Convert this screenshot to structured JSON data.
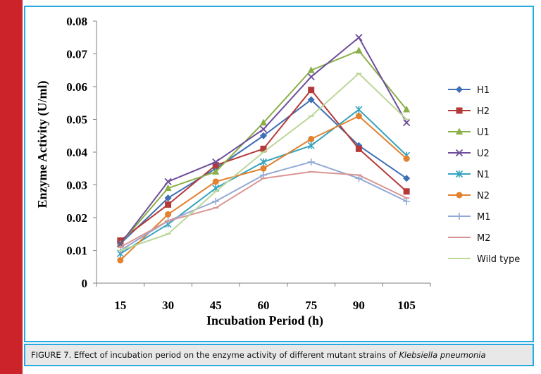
{
  "caption": {
    "prefix": "FIGURE 7. Effect of incubation period on the enzyme activity of different mutant strains of ",
    "organism": "Klebsiella pneumonia"
  },
  "colors": {
    "left_bar": "#cc2229",
    "frame": "#29a9e1"
  },
  "chart_data": {
    "type": "line",
    "xlabel": "Incubation Period (h)",
    "ylabel": "Enzyme Activity (U/ml)",
    "x": [
      15,
      30,
      45,
      60,
      75,
      90,
      105
    ],
    "ylim": [
      0,
      0.08
    ],
    "yticks": [
      "0",
      "0.01",
      "0.02",
      "0.03",
      "0.04",
      "0.05",
      "0.06",
      "0.07",
      "0.08"
    ],
    "yticks_values": [
      0,
      0.01,
      0.02,
      0.03,
      0.04,
      0.05,
      0.06,
      0.07,
      0.08
    ],
    "grid": false,
    "legend_position": "right",
    "series": [
      {
        "name": "H1",
        "color": "#3f6fb5",
        "marker": "diamond",
        "values": [
          0.012,
          0.026,
          0.035,
          0.045,
          0.056,
          0.042,
          0.032
        ]
      },
      {
        "name": "H2",
        "color": "#b53a37",
        "marker": "square",
        "values": [
          0.013,
          0.024,
          0.036,
          0.041,
          0.059,
          0.041,
          0.028
        ]
      },
      {
        "name": "U1",
        "color": "#8aaf46",
        "marker": "triangle",
        "values": [
          0.012,
          0.029,
          0.034,
          0.049,
          0.065,
          0.071,
          0.053
        ]
      },
      {
        "name": "U2",
        "color": "#6e4e9a",
        "marker": "x",
        "values": [
          0.012,
          0.031,
          0.037,
          0.047,
          0.063,
          0.075,
          0.049
        ]
      },
      {
        "name": "N1",
        "color": "#36a3be",
        "marker": "star",
        "values": [
          0.009,
          0.018,
          0.029,
          0.037,
          0.042,
          0.053,
          0.039
        ]
      },
      {
        "name": "N2",
        "color": "#e2812e",
        "marker": "circle",
        "values": [
          0.007,
          0.021,
          0.031,
          0.035,
          0.044,
          0.051,
          0.038
        ]
      },
      {
        "name": "M1",
        "color": "#92a9d5",
        "marker": "plus",
        "values": [
          0.01,
          0.019,
          0.025,
          0.033,
          0.037,
          0.032,
          0.025
        ]
      },
      {
        "name": "M2",
        "color": "#d99593",
        "marker": "dash",
        "values": [
          0.011,
          0.019,
          0.023,
          0.032,
          0.034,
          0.033,
          0.026
        ]
      },
      {
        "name": "Wild type",
        "color": "#bcd79a",
        "marker": "dash",
        "values": [
          0.01,
          0.015,
          0.028,
          0.04,
          0.051,
          0.064,
          0.05
        ]
      }
    ]
  }
}
